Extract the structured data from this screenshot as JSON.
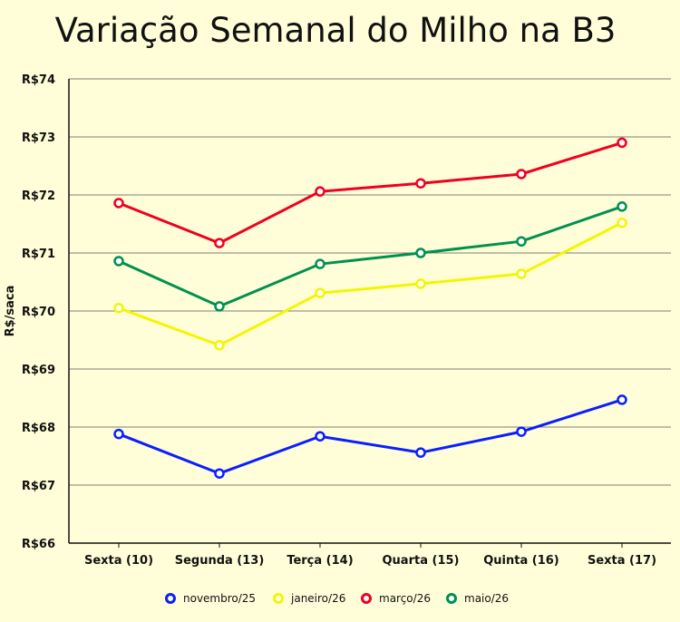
{
  "chart_data": {
    "type": "line",
    "title": "Variação Semanal do Milho na B3",
    "xlabel": "",
    "ylabel": "R$/saca",
    "categories": [
      "Sexta (10)",
      "Segunda (13)",
      "Terça (14)",
      "Quarta (15)",
      "Quinta (16)",
      "Sexta (17)"
    ],
    "ylim": [
      66,
      74
    ],
    "yticks": [
      66,
      67,
      68,
      69,
      70,
      71,
      72,
      73,
      74
    ],
    "ytick_labels": [
      "R$66",
      "R$67",
      "R$68",
      "R$69",
      "R$70",
      "R$71",
      "R$72",
      "R$73",
      "R$74"
    ],
    "grid": "horizontal",
    "legend_position": "bottom",
    "series": [
      {
        "name": "novembro/25",
        "color": "#0a1eff",
        "values": [
          67.88,
          67.2,
          67.84,
          67.56,
          67.92,
          68.47
        ]
      },
      {
        "name": "janeiro/26",
        "color": "#f5f500",
        "values": [
          70.05,
          69.41,
          70.31,
          70.47,
          70.64,
          71.52
        ]
      },
      {
        "name": "março/26",
        "color": "#f0001e",
        "values": [
          71.86,
          71.17,
          72.06,
          72.2,
          72.36,
          72.9
        ]
      },
      {
        "name": "maio/26",
        "color": "#00914f",
        "values": [
          70.86,
          70.08,
          70.81,
          71.0,
          71.2,
          71.8
        ]
      }
    ]
  }
}
